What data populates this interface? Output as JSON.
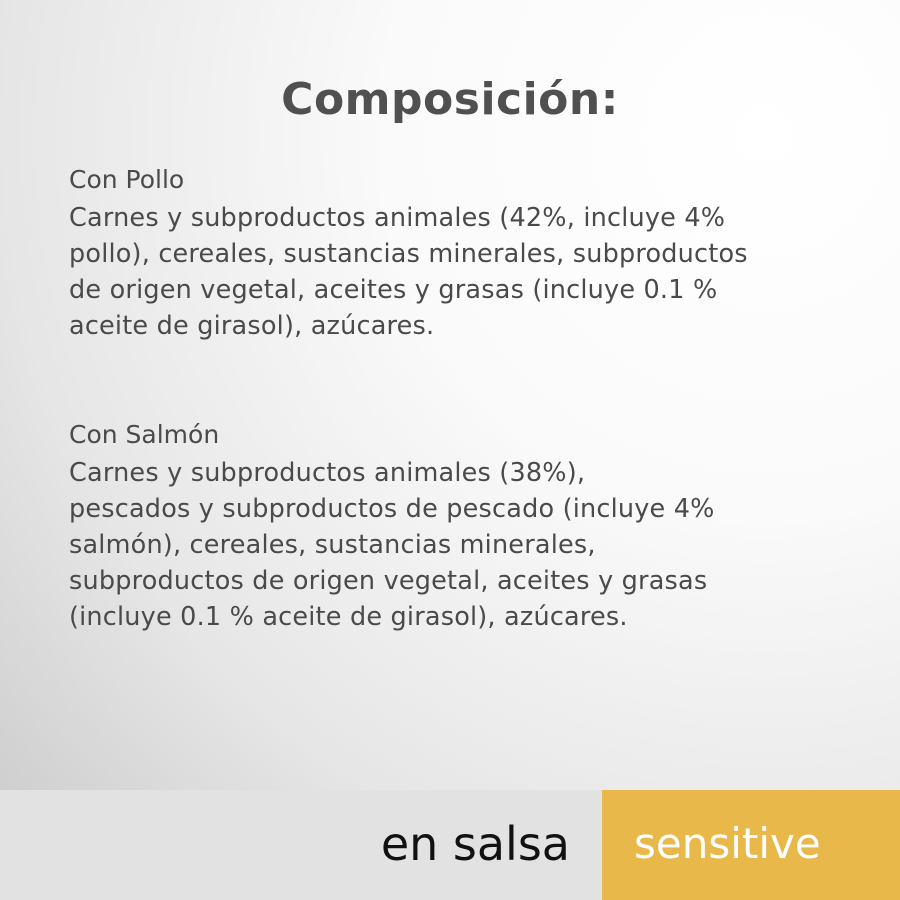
{
  "title": "Composición:",
  "sections": [
    {
      "heading": "Con Pollo",
      "text": "Carnes y subproductos animales (42%, incluye 4%\npollo), cereales, sustancias minerales, subproductos\nde origen vegetal, aceites y grasas (incluye 0.1 %\naceite de girasol), azúcares."
    },
    {
      "heading": "Con Salmón",
      "text": "Carnes y subproductos animales (38%),\npescados y subproductos de pescado (incluye 4%\nsalmón), cereales, sustancias minerales,\nsubproductos de origen vegetal, aceites y grasas\n(incluye 0.1 % aceite de girasol), azúcares."
    }
  ],
  "footer": {
    "variant": "en salsa",
    "tag": "sensitive"
  },
  "colors": {
    "accent": "#e8b94a",
    "footer_bg": "#e2e2e2",
    "text": "#4a4a4a"
  }
}
